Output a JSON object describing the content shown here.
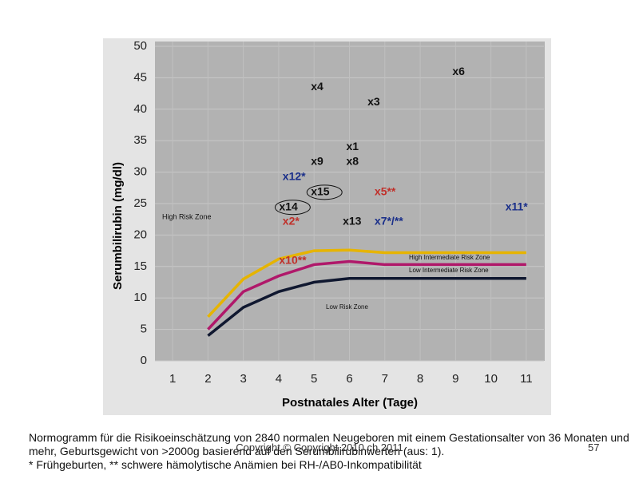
{
  "chart_data": {
    "type": "line",
    "xlabel": "Postnatales Alter (Tage)",
    "ylabel": "Serumbilirubin (mg/dl)",
    "x": [
      1,
      2,
      3,
      4,
      5,
      6,
      7,
      8,
      9,
      10,
      11
    ],
    "series": [
      {
        "color": "#e6b400",
        "values": [
          null,
          7,
          13,
          16.2,
          17.5,
          17.6,
          17.2,
          17.2,
          17.2,
          17.2,
          17.2
        ]
      },
      {
        "color": "#b0186a",
        "values": [
          null,
          5,
          11,
          13.5,
          15.3,
          15.8,
          15.3,
          15.3,
          15.3,
          15.3,
          15.3
        ]
      },
      {
        "color": "#101830",
        "values": [
          null,
          4,
          8.5,
          11,
          12.5,
          13.1,
          13.1,
          13.1,
          13.1,
          13.1,
          13.1
        ]
      }
    ],
    "points": [
      {
        "label": "x4",
        "x": 5,
        "y": 43.5,
        "color": "#111111"
      },
      {
        "label": "x6",
        "x": 9,
        "y": 45.9,
        "color": "#111111"
      },
      {
        "label": "x3",
        "x": 6.6,
        "y": 41.1,
        "color": "#111111"
      },
      {
        "label": "x1",
        "x": 6,
        "y": 34,
        "color": "#111111"
      },
      {
        "label": "x9",
        "x": 5,
        "y": 31.6,
        "color": "#111111"
      },
      {
        "label": "x8",
        "x": 6,
        "y": 31.6,
        "color": "#111111"
      },
      {
        "label": "x12*",
        "x": 4.2,
        "y": 29.2,
        "color": "#1a2f8a"
      },
      {
        "label": "x15",
        "x": 5,
        "y": 26.8,
        "color": "#111111",
        "circled": true
      },
      {
        "label": "x5**",
        "x": 6.8,
        "y": 26.8,
        "color": "#c0302a"
      },
      {
        "label": "x14",
        "x": 4.1,
        "y": 24.4,
        "color": "#111111",
        "circled": true
      },
      {
        "label": "x11*",
        "x": 10.5,
        "y": 24.4,
        "color": "#1a2f8a"
      },
      {
        "label": "x2*",
        "x": 4.2,
        "y": 22.1,
        "color": "#c0302a"
      },
      {
        "label": "x13",
        "x": 5.9,
        "y": 22.1,
        "color": "#111111"
      },
      {
        "label": "x7*/**",
        "x": 6.8,
        "y": 22.1,
        "color": "#1a2f8a"
      },
      {
        "label": "x10**",
        "x": 4.1,
        "y": 15.9,
        "color": "#c0302a"
      }
    ],
    "annotations": [
      "High Risk Zone",
      "High Intermediate Risk Zone",
      "Low Intermediate Risk Zone",
      "Low Risk Zone"
    ],
    "xlim": [
      0.5,
      11.5
    ],
    "xticks": [
      1,
      2,
      3,
      4,
      5,
      6,
      7,
      8,
      9,
      10,
      11
    ],
    "ylim": [
      0,
      50
    ],
    "yticks": [
      0,
      5,
      10,
      15,
      20,
      25,
      30,
      35,
      40,
      45,
      50
    ],
    "grid": true
  },
  "caption": [
    "Normogramm für die Risikoeinschätzung von 2840 normalen Neugeboren mit einem Gestationsalter von 36 Monaten und mehr, Geburtsgewicht von >2000g basierend auf den Serumbilirubinwerten (aus: 1).",
    "* Frühgeburten, ** schwere hämolytische Anämien bei RH-/AB0-Inkompatibilität"
  ],
  "footer": "Copyright © Copyright 2010 ch 2011",
  "page_number": "57"
}
